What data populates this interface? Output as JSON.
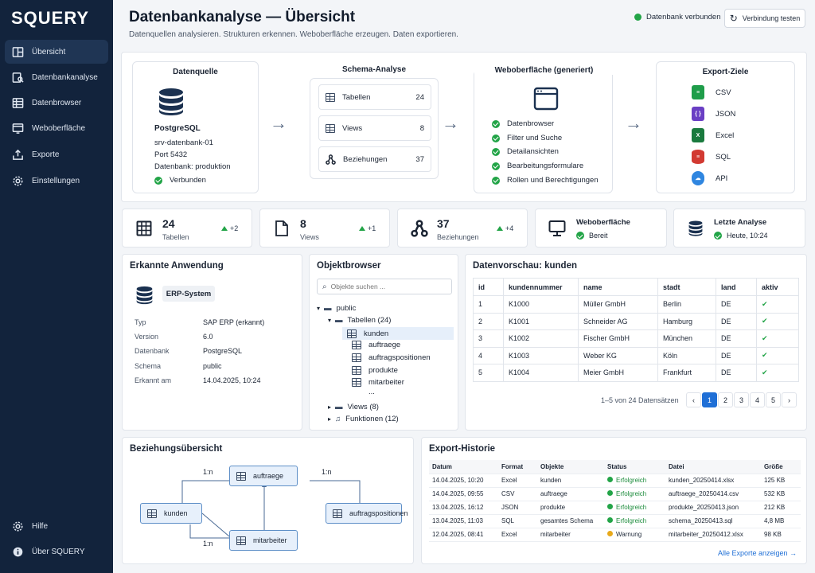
{
  "app": {
    "logo": "SQUERY"
  },
  "sidebar": {
    "items": [
      {
        "label": "Übersicht"
      },
      {
        "label": "Datenbankanalyse"
      },
      {
        "label": "Datenbrowser"
      },
      {
        "label": "Weboberfläche"
      },
      {
        "label": "Exporte"
      },
      {
        "label": "Einstellungen"
      }
    ],
    "bottom": [
      {
        "label": "Hilfe"
      },
      {
        "label": "Über SQUERY"
      }
    ]
  },
  "header": {
    "title": "Datenbankanalyse — Übersicht",
    "subtitle": "Datenquellen analysieren. Strukturen erkennen. Weboberfläche erzeugen. Daten exportieren.",
    "status": "Datenbank verbunden",
    "button": "Verbindung testen"
  },
  "flow": {
    "source": {
      "title": "Datenquelle",
      "name": "PostgreSQL",
      "lines": [
        "srv-datenbank-01",
        "Port 5432",
        "Datenbank: produktion"
      ],
      "status": "Verbunden"
    },
    "schema": {
      "title": "Schema-Analyse",
      "items": [
        {
          "label": "Tabellen",
          "count": "24"
        },
        {
          "label": "Views",
          "count": "8"
        },
        {
          "label": "Beziehungen",
          "count": "37"
        }
      ]
    },
    "web": {
      "title": "Weboberfläche (generiert)",
      "items": [
        "Datenbrowser",
        "Filter und Suche",
        "Detailansichten",
        "Bearbeitungsformulare",
        "Rollen und Berechtigungen"
      ]
    },
    "export": {
      "title": "Export-Ziele",
      "items": [
        {
          "label": "CSV"
        },
        {
          "label": "JSON"
        },
        {
          "label": "Excel"
        },
        {
          "label": "SQL"
        },
        {
          "label": "API"
        }
      ]
    }
  },
  "stats": [
    {
      "value": "24",
      "label": "Tabellen",
      "change": "+2"
    },
    {
      "value": "8",
      "label": "Views",
      "change": "+1"
    },
    {
      "value": "37",
      "label": "Beziehungen",
      "change": "+4"
    },
    {
      "title": "Weboberfläche",
      "status": "Bereit"
    },
    {
      "title": "Letzte Analyse",
      "status": "Heute, 10:24"
    }
  ],
  "app_detect": {
    "title": "Erkannte Anwendung",
    "badge": "ERP-System",
    "rows": [
      {
        "k": "Typ",
        "v": "SAP ERP (erkannt)"
      },
      {
        "k": "Version",
        "v": "6.0"
      },
      {
        "k": "Datenbank",
        "v": "PostgreSQL"
      },
      {
        "k": "Schema",
        "v": "public"
      },
      {
        "k": "Erkannt am",
        "v": "14.04.2025, 10:24"
      }
    ]
  },
  "browser": {
    "title": "Objektbrowser",
    "placeholder": "Objekte suchen ...",
    "schema": "public",
    "tables_label": "Tabellen (24)",
    "tables": [
      "kunden",
      "auftraege",
      "auftragspositionen",
      "produkte",
      "mitarbeiter"
    ],
    "more": "...",
    "views": "Views (8)",
    "functions": "Funktionen (12)"
  },
  "preview": {
    "title": "Datenvorschau: kunden",
    "columns": [
      "id",
      "kundennummer",
      "name",
      "stadt",
      "land",
      "aktiv"
    ],
    "rows": [
      [
        "1",
        "K1000",
        "Müller GmbH",
        "Berlin",
        "DE"
      ],
      [
        "2",
        "K1001",
        "Schneider AG",
        "Hamburg",
        "DE"
      ],
      [
        "3",
        "K1002",
        "Fischer GmbH",
        "München",
        "DE"
      ],
      [
        "4",
        "K1003",
        "Weber KG",
        "Köln",
        "DE"
      ],
      [
        "5",
        "K1004",
        "Meier GmbH",
        "Frankfurt",
        "DE"
      ]
    ],
    "check": "✔",
    "paging": "1–5 von 24 Datensätzen",
    "pages": [
      "‹",
      "1",
      "2",
      "3",
      "4",
      "5",
      "›"
    ]
  },
  "relations": {
    "title": "Beziehungsübersicht",
    "nodes": [
      "kunden",
      "auftraege",
      "auftragspositionen",
      "mitarbeiter"
    ],
    "labels": [
      "1:n",
      "1:n",
      "1:n"
    ]
  },
  "history": {
    "title": "Export-Historie",
    "columns": [
      "Datum",
      "Format",
      "Objekte",
      "Status",
      "Datei",
      "Größe"
    ],
    "rows": [
      [
        "14.04.2025, 10:20",
        "Excel",
        "kunden",
        "Erfolgreich",
        "kunden_20250414.xlsx",
        "125 KB"
      ],
      [
        "14.04.2025, 09:55",
        "CSV",
        "auftraege",
        "Erfolgreich",
        "auftraege_20250414.csv",
        "532 KB"
      ],
      [
        "13.04.2025, 16:12",
        "JSON",
        "produkte",
        "Erfolgreich",
        "produkte_20250413.json",
        "212 KB"
      ],
      [
        "13.04.2025, 11:03",
        "SQL",
        "gesamtes Schema",
        "Erfolgreich",
        "schema_20250413.sql",
        "4,8 MB"
      ],
      [
        "12.04.2025, 08:41",
        "Excel",
        "mitarbeiter",
        "Warnung",
        "mitarbeiter_20250412.xlsx",
        "98 KB"
      ]
    ],
    "link": "Alle Exporte anzeigen →"
  },
  "colors": {
    "accent": "#1f6fd6",
    "success": "#22a447",
    "warning": "#e8a91a",
    "sidebar": "#12233c"
  }
}
